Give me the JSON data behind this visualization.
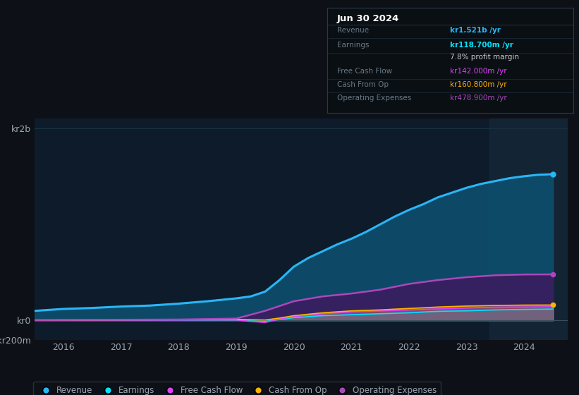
{
  "bg_color": "#0d1117",
  "plot_bg_color": "#0d1b2a",
  "grid_color": "#1e3a4a",
  "text_color": "#9aa5b0",
  "years": [
    2015.5,
    2016.0,
    2016.5,
    2017.0,
    2017.5,
    2018.0,
    2018.5,
    2019.0,
    2019.25,
    2019.5,
    2019.75,
    2020.0,
    2020.25,
    2020.5,
    2020.75,
    2021.0,
    2021.25,
    2021.5,
    2021.75,
    2022.0,
    2022.25,
    2022.5,
    2022.75,
    2023.0,
    2023.25,
    2023.5,
    2023.75,
    2024.0,
    2024.25,
    2024.5
  ],
  "revenue": [
    100,
    120,
    130,
    145,
    155,
    175,
    200,
    230,
    250,
    300,
    420,
    560,
    650,
    720,
    790,
    850,
    920,
    1000,
    1080,
    1150,
    1210,
    1280,
    1330,
    1380,
    1420,
    1450,
    1480,
    1500,
    1515,
    1521
  ],
  "earnings": [
    2,
    3,
    3,
    4,
    4,
    5,
    5,
    5,
    -5,
    -10,
    10,
    30,
    40,
    50,
    55,
    60,
    65,
    70,
    75,
    80,
    88,
    95,
    98,
    100,
    105,
    110,
    113,
    115,
    117,
    118.7
  ],
  "free_cash_flow": [
    2,
    3,
    3,
    4,
    4,
    5,
    6,
    6,
    -10,
    -20,
    15,
    40,
    55,
    70,
    80,
    90,
    95,
    100,
    105,
    110,
    115,
    120,
    125,
    130,
    134,
    138,
    139,
    140,
    141,
    142
  ],
  "cash_from_op": [
    4,
    5,
    6,
    7,
    8,
    9,
    10,
    11,
    8,
    5,
    25,
    50,
    65,
    80,
    90,
    100,
    105,
    110,
    118,
    125,
    132,
    140,
    145,
    150,
    153,
    157,
    158,
    160,
    160.5,
    160.8
  ],
  "operating_expenses": [
    5,
    6,
    7,
    8,
    9,
    10,
    15,
    20,
    60,
    100,
    150,
    200,
    225,
    250,
    265,
    280,
    300,
    320,
    350,
    380,
    400,
    420,
    435,
    450,
    460,
    470,
    474,
    478,
    478.5,
    478.9
  ],
  "revenue_color": "#29b6f6",
  "earnings_color": "#00e5ff",
  "fcf_color": "#e040fb",
  "cashop_color": "#ffb300",
  "opex_color": "#ab47bc",
  "shade_color_revenue": "#0d4f6e",
  "shade_color_opex": "#3d1a5e",
  "ylim_min": -200,
  "ylim_max": 2100,
  "xlim_min": 2015.5,
  "xlim_max": 2024.75,
  "yticks": [
    2000,
    0,
    -200
  ],
  "ytick_labels": [
    "kr2b",
    "kr0",
    "-kr200m"
  ],
  "xticks": [
    2016,
    2017,
    2018,
    2019,
    2020,
    2021,
    2022,
    2023,
    2024
  ],
  "highlight_start": 2023.4,
  "info_box": {
    "date": "Jun 30 2024",
    "rows": [
      {
        "label": "Revenue",
        "value": "kr1.521b /yr",
        "color": "#29b6f6",
        "bold": true
      },
      {
        "label": "Earnings",
        "value": "kr118.700m /yr",
        "color": "#00e5ff",
        "bold": true
      },
      {
        "label": "",
        "value": "7.8% profit margin",
        "color": "#cccccc",
        "bold": false
      },
      {
        "label": "Free Cash Flow",
        "value": "kr142.000m /yr",
        "color": "#e040fb",
        "bold": false
      },
      {
        "label": "Cash From Op",
        "value": "kr160.800m /yr",
        "color": "#ffb300",
        "bold": false
      },
      {
        "label": "Operating Expenses",
        "value": "kr478.900m /yr",
        "color": "#ab47bc",
        "bold": false
      }
    ]
  },
  "legend_labels": [
    "Revenue",
    "Earnings",
    "Free Cash Flow",
    "Cash From Op",
    "Operating Expenses"
  ],
  "legend_colors": [
    "#29b6f6",
    "#00e5ff",
    "#e040fb",
    "#ffb300",
    "#ab47bc"
  ]
}
